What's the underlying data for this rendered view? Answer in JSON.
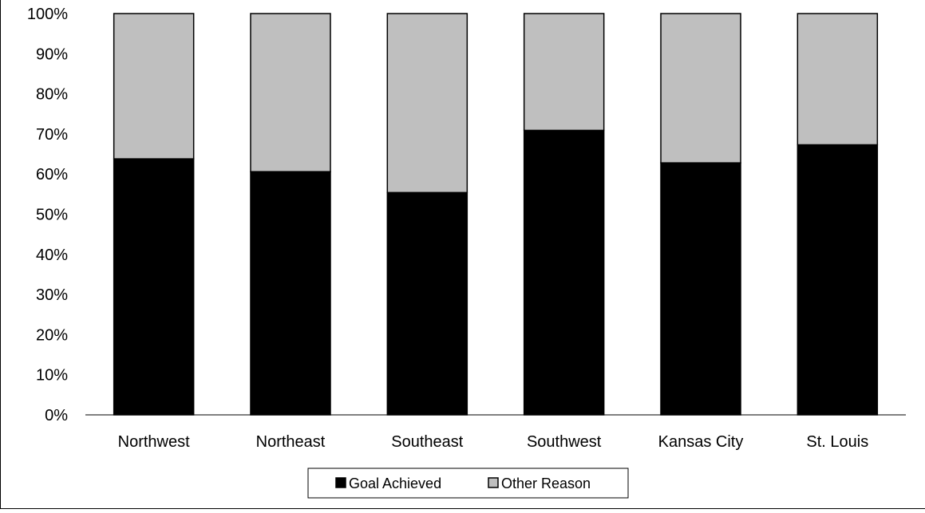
{
  "chart_data": {
    "type": "bar",
    "stacked": true,
    "percent": true,
    "categories": [
      "Northwest",
      "Northeast",
      "Southeast",
      "Southwest",
      "Kansas City",
      "St. Louis"
    ],
    "series": [
      {
        "name": "Goal Achieved",
        "values": [
          63.8,
          60.6,
          55.4,
          70.9,
          62.8,
          67.3
        ],
        "color": "#000000"
      },
      {
        "name": "Other Reason",
        "values": [
          36.2,
          39.4,
          44.6,
          29.1,
          37.2,
          32.7
        ],
        "color": "#bfbfbf"
      }
    ],
    "y_ticks": [
      "0%",
      "10%",
      "20%",
      "30%",
      "40%",
      "50%",
      "60%",
      "70%",
      "80%",
      "90%",
      "100%"
    ],
    "ylim": [
      0,
      100
    ],
    "grid": false,
    "legend_position": "bottom",
    "title": "",
    "xlabel": "",
    "ylabel": ""
  }
}
